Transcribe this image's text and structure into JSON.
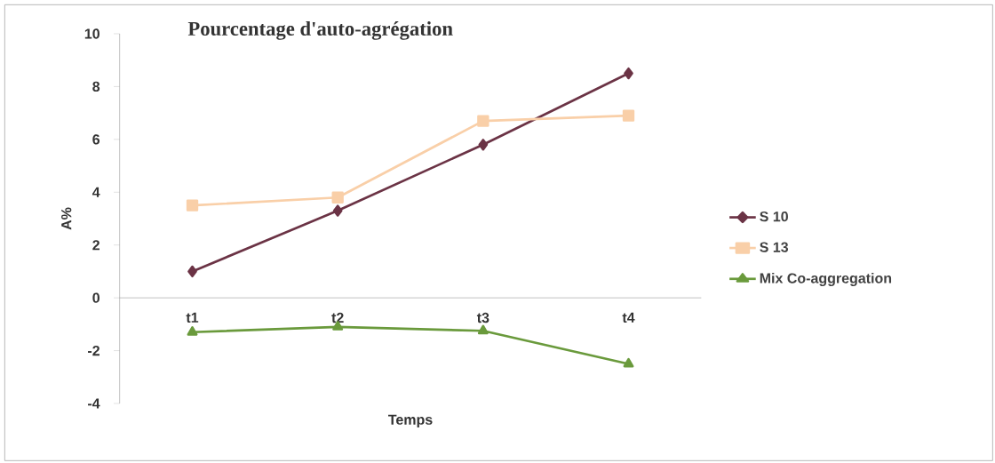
{
  "chart_data": {
    "type": "line",
    "title": "Pourcentage d'auto-agrégation",
    "xlabel": "Temps",
    "ylabel": "A%",
    "categories": [
      "t1",
      "t2",
      "t3",
      "t4"
    ],
    "series": [
      {
        "name": "S 10",
        "color": "#6b3345",
        "marker": "diamond",
        "values": [
          1.0,
          3.3,
          5.8,
          8.5
        ]
      },
      {
        "name": "S 13",
        "color": "#f9cfa8",
        "marker": "square",
        "values": [
          3.5,
          3.8,
          6.7,
          6.9
        ]
      },
      {
        "name": "Mix Co-aggregation",
        "color": "#6a9a3c",
        "marker": "triangle",
        "values": [
          -1.3,
          -1.1,
          -1.25,
          -2.5
        ]
      }
    ],
    "ylim": [
      -4,
      10
    ],
    "yticks": [
      -4,
      -2,
      0,
      2,
      4,
      6,
      8,
      10
    ],
    "grid": false,
    "legend": "right",
    "line_style": "solid"
  }
}
